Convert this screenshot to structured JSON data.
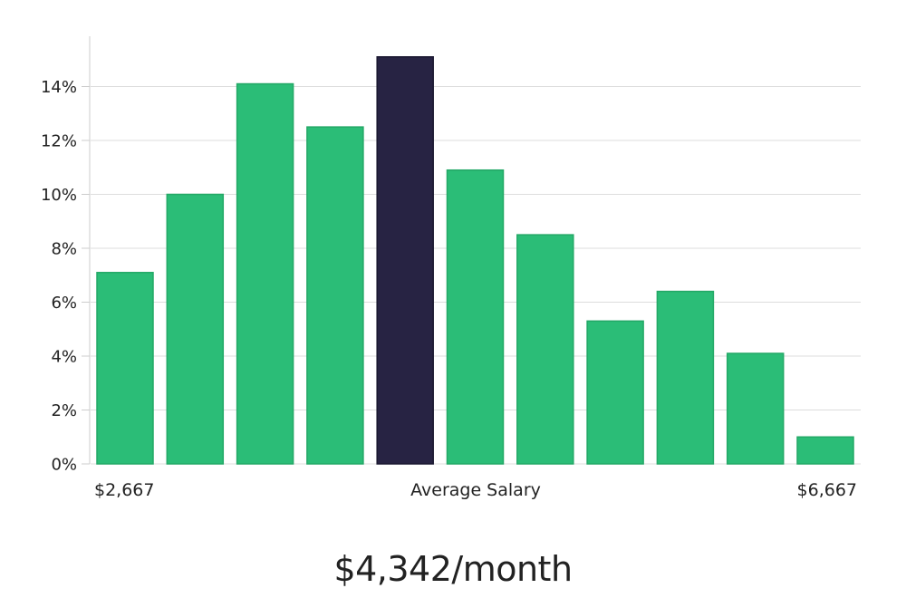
{
  "chart_data": {
    "type": "bar",
    "values": [
      7.1,
      10.0,
      14.1,
      12.5,
      15.1,
      10.9,
      8.5,
      5.3,
      6.4,
      4.1,
      1.0
    ],
    "highlight_index": 4,
    "ylim": [
      0,
      15.8
    ],
    "y_ticks": [
      0,
      2,
      4,
      6,
      8,
      10,
      12,
      14
    ],
    "y_tick_suffix": "%",
    "x_labels": {
      "left": "$2,667",
      "center": "Average Salary",
      "right": "$6,667"
    },
    "grid": true,
    "colors": {
      "bar": "#2bbd77",
      "highlight": "#272343",
      "grid": "#dddddd"
    }
  },
  "summary": {
    "average_salary": "$4,342/month"
  }
}
